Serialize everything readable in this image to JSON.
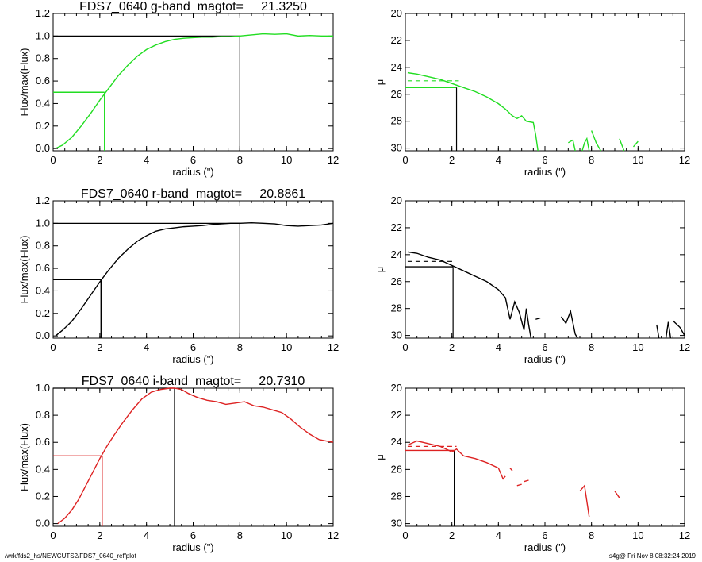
{
  "footer": {
    "path": "/wrk/fds2_hs/NEWCUTS2/FDS7_0640_reffplot",
    "stamp": "s4g@  Fri Nov  8 08:32:24 2019"
  },
  "chart_data": [
    {
      "type": "line",
      "band": "g",
      "title": "FDS7_0640 g-band  magtot=     21.3250",
      "xlabel": "radius (\")",
      "ylabel": "Flux/max(Flux)",
      "xlim": [
        0,
        12
      ],
      "ylim": [
        -0.02,
        1.2
      ],
      "xticks": [
        "0",
        "2",
        "4",
        "6",
        "8",
        "10",
        "12"
      ],
      "yticks": [
        "0.0",
        "0.2",
        "0.4",
        "0.6",
        "0.8",
        "1.0",
        "1.2"
      ],
      "color": "#22dd22",
      "x": [
        0.1,
        0.4,
        0.8,
        1.2,
        1.6,
        2.0,
        2.4,
        2.8,
        3.2,
        3.6,
        4.0,
        4.4,
        4.8,
        5.2,
        5.6,
        6.0,
        6.4,
        6.8,
        7.2,
        7.6,
        8.0,
        8.5,
        9.0,
        9.5,
        10.0,
        10.5,
        11.0,
        11.5,
        12.0
      ],
      "values": [
        0.0,
        0.03,
        0.1,
        0.2,
        0.31,
        0.43,
        0.54,
        0.65,
        0.74,
        0.82,
        0.88,
        0.92,
        0.95,
        0.97,
        0.98,
        0.985,
        0.99,
        0.99,
        0.995,
        0.995,
        1.0,
        1.01,
        1.02,
        1.015,
        1.02,
        1.0,
        1.005,
        1.0,
        1.0
      ],
      "ref_lines": {
        "half_flux": 0.5,
        "r_half": 2.2,
        "max_flux": 1.0,
        "r_max": 8.0
      }
    },
    {
      "type": "line",
      "band": "g",
      "title": "",
      "xlabel": "radius (\")",
      "ylabel": "μ",
      "xlim": [
        0,
        12
      ],
      "ylim": [
        20,
        30.2
      ],
      "y_inverted": true,
      "xticks": [
        "0",
        "2",
        "4",
        "6",
        "8",
        "10",
        "12"
      ],
      "yticks": [
        "20",
        "22",
        "24",
        "26",
        "28",
        "30"
      ],
      "color": "#22dd22",
      "segments": [
        [
          [
            0.1,
            24.4
          ],
          [
            0.5,
            24.5
          ],
          [
            1.0,
            24.7
          ],
          [
            1.5,
            24.9
          ],
          [
            2.0,
            25.2
          ],
          [
            2.5,
            25.5
          ],
          [
            3.0,
            25.8
          ],
          [
            3.5,
            26.2
          ],
          [
            4.0,
            26.7
          ],
          [
            4.3,
            27.1
          ],
          [
            4.6,
            27.6
          ],
          [
            4.8,
            27.8
          ],
          [
            5.0,
            27.6
          ],
          [
            5.2,
            28.0
          ],
          [
            5.5,
            28.1
          ],
          [
            5.6,
            29.0
          ],
          [
            5.7,
            30.2
          ]
        ],
        [
          [
            7.0,
            29.6
          ],
          [
            7.2,
            29.4
          ],
          [
            7.3,
            30.2
          ]
        ],
        [
          [
            7.6,
            30.2
          ],
          [
            7.7,
            29.6
          ],
          [
            7.8,
            29.3
          ],
          [
            7.9,
            30.2
          ]
        ],
        [
          [
            8.0,
            28.7
          ],
          [
            8.2,
            29.6
          ],
          [
            8.4,
            30.2
          ]
        ],
        [
          [
            9.2,
            29.3
          ],
          [
            9.4,
            30.2
          ]
        ],
        [
          [
            9.8,
            29.9
          ],
          [
            10.0,
            29.5
          ]
        ]
      ],
      "dashed": [
        [
          0.1,
          25.0
        ],
        [
          2.3,
          25.0
        ]
      ],
      "ref_lines": {
        "mu_eff": 25.5,
        "r_eff": 2.2
      }
    },
    {
      "type": "line",
      "band": "r",
      "title": "FDS7_0640 r-band  magtot=     20.8861",
      "xlabel": "radius (\")",
      "ylabel": "Flux/max(Flux)",
      "xlim": [
        0,
        12
      ],
      "ylim": [
        -0.02,
        1.2
      ],
      "xticks": [
        "0",
        "2",
        "4",
        "6",
        "8",
        "10",
        "12"
      ],
      "yticks": [
        "0.0",
        "0.2",
        "0.4",
        "0.6",
        "0.8",
        "1.0",
        "1.2"
      ],
      "color": "#000000",
      "x": [
        0.1,
        0.4,
        0.8,
        1.2,
        1.6,
        2.0,
        2.4,
        2.8,
        3.2,
        3.6,
        4.0,
        4.4,
        4.8,
        5.2,
        5.6,
        6.0,
        6.4,
        6.8,
        7.2,
        7.6,
        8.0,
        8.5,
        9.0,
        9.5,
        10.0,
        10.5,
        11.0,
        11.5,
        12.0
      ],
      "values": [
        0.0,
        0.05,
        0.13,
        0.24,
        0.36,
        0.48,
        0.59,
        0.69,
        0.77,
        0.84,
        0.89,
        0.93,
        0.95,
        0.96,
        0.97,
        0.975,
        0.98,
        0.99,
        0.995,
        1.0,
        1.0,
        1.005,
        1.0,
        0.995,
        0.98,
        0.975,
        0.98,
        0.985,
        1.0
      ],
      "ref_lines": {
        "half_flux": 0.5,
        "r_half": 2.05,
        "max_flux": 1.0,
        "r_max": 8.0
      }
    },
    {
      "type": "line",
      "band": "r",
      "title": "",
      "xlabel": "radius (\")",
      "ylabel": "μ",
      "xlim": [
        0,
        12
      ],
      "ylim": [
        20,
        30.2
      ],
      "y_inverted": true,
      "xticks": [
        "0",
        "2",
        "4",
        "6",
        "8",
        "10",
        "12"
      ],
      "yticks": [
        "20",
        "22",
        "24",
        "26",
        "28",
        "30"
      ],
      "color": "#000000",
      "segments": [
        [
          [
            0.1,
            23.8
          ],
          [
            0.5,
            23.9
          ],
          [
            1.0,
            24.2
          ],
          [
            1.5,
            24.4
          ],
          [
            2.0,
            24.8
          ],
          [
            2.5,
            25.2
          ],
          [
            3.0,
            25.6
          ],
          [
            3.5,
            26.0
          ],
          [
            4.0,
            26.6
          ],
          [
            4.3,
            27.2
          ],
          [
            4.5,
            28.8
          ],
          [
            4.7,
            27.5
          ],
          [
            4.9,
            28.3
          ],
          [
            5.1,
            29.6
          ],
          [
            5.2,
            28.0
          ],
          [
            5.3,
            29.2
          ],
          [
            5.4,
            30.2
          ]
        ],
        [
          [
            5.6,
            28.8
          ],
          [
            5.8,
            28.7
          ]
        ],
        [
          [
            6.7,
            28.6
          ],
          [
            6.9,
            29.1
          ],
          [
            7.1,
            28.2
          ],
          [
            7.3,
            29.9
          ],
          [
            7.4,
            30.2
          ]
        ],
        [
          [
            10.8,
            29.2
          ],
          [
            10.9,
            30.2
          ]
        ],
        [
          [
            11.2,
            30.2
          ],
          [
            11.3,
            29.0
          ],
          [
            11.4,
            30.2
          ]
        ],
        [
          [
            11.5,
            28.9
          ],
          [
            11.8,
            29.4
          ],
          [
            12.0,
            30.0
          ]
        ]
      ],
      "dashed": [
        [
          0.1,
          24.5
        ],
        [
          2.1,
          24.5
        ]
      ],
      "ref_lines": {
        "mu_eff": 24.9,
        "r_eff": 2.05
      }
    },
    {
      "type": "line",
      "band": "i",
      "title": "FDS7_0640 i-band  magtot=     20.7310",
      "xlabel": "radius (\")",
      "ylabel": "Flux/max(Flux)",
      "xlim": [
        0,
        12
      ],
      "ylim": [
        -0.02,
        1.0
      ],
      "xticks": [
        "0",
        "2",
        "4",
        "6",
        "8",
        "10",
        "12"
      ],
      "yticks": [
        "0.0",
        "0.2",
        "0.4",
        "0.6",
        "0.8",
        "1.0"
      ],
      "color": "#dd2222",
      "x": [
        0.2,
        0.5,
        0.8,
        1.1,
        1.4,
        1.7,
        2.0,
        2.3,
        2.6,
        3.0,
        3.4,
        3.8,
        4.2,
        4.6,
        5.0,
        5.2,
        5.5,
        5.8,
        6.2,
        6.6,
        7.0,
        7.4,
        7.8,
        8.2,
        8.6,
        9.0,
        9.4,
        9.8,
        10.2,
        10.6,
        11.0,
        11.4,
        11.7,
        12.0
      ],
      "values": [
        0.0,
        0.04,
        0.1,
        0.18,
        0.28,
        0.38,
        0.48,
        0.57,
        0.65,
        0.75,
        0.84,
        0.92,
        0.97,
        0.99,
        1.0,
        1.0,
        0.99,
        0.96,
        0.93,
        0.91,
        0.9,
        0.88,
        0.89,
        0.9,
        0.87,
        0.86,
        0.84,
        0.82,
        0.77,
        0.71,
        0.66,
        0.62,
        0.61,
        0.6
      ],
      "ref_lines": {
        "half_flux": 0.5,
        "r_half": 2.1,
        "max_flux": 1.0,
        "r_max": 5.2
      }
    },
    {
      "type": "line",
      "band": "i",
      "title": "",
      "xlabel": "radius (\")",
      "ylabel": "μ",
      "xlim": [
        0,
        12
      ],
      "ylim": [
        20,
        30.2
      ],
      "y_inverted": true,
      "xticks": [
        "0",
        "2",
        "4",
        "6",
        "8",
        "10",
        "12"
      ],
      "yticks": [
        "20",
        "22",
        "24",
        "26",
        "28",
        "30"
      ],
      "color": "#dd2222",
      "segments": [
        [
          [
            0.1,
            24.2
          ],
          [
            0.5,
            23.9
          ],
          [
            1.0,
            24.1
          ],
          [
            1.5,
            24.3
          ],
          [
            2.0,
            24.7
          ],
          [
            2.2,
            24.5
          ],
          [
            2.5,
            25.0
          ],
          [
            3.0,
            25.2
          ],
          [
            3.5,
            25.5
          ],
          [
            4.0,
            25.9
          ],
          [
            4.2,
            26.7
          ],
          [
            4.3,
            26.5
          ]
        ],
        [
          [
            4.5,
            25.9
          ],
          [
            4.6,
            26.1
          ]
        ],
        [
          [
            4.8,
            27.2
          ],
          [
            5.0,
            27.1
          ]
        ],
        [
          [
            5.1,
            26.9
          ],
          [
            5.3,
            26.8
          ]
        ],
        [
          [
            7.5,
            27.6
          ],
          [
            7.7,
            27.2
          ],
          [
            7.9,
            29.5
          ]
        ],
        [
          [
            9.0,
            27.6
          ],
          [
            9.2,
            28.1
          ]
        ]
      ],
      "dashed": [
        [
          0.1,
          24.3
        ],
        [
          2.2,
          24.3
        ]
      ],
      "ref_lines": {
        "mu_eff": 24.6,
        "r_eff": 2.1
      }
    }
  ]
}
